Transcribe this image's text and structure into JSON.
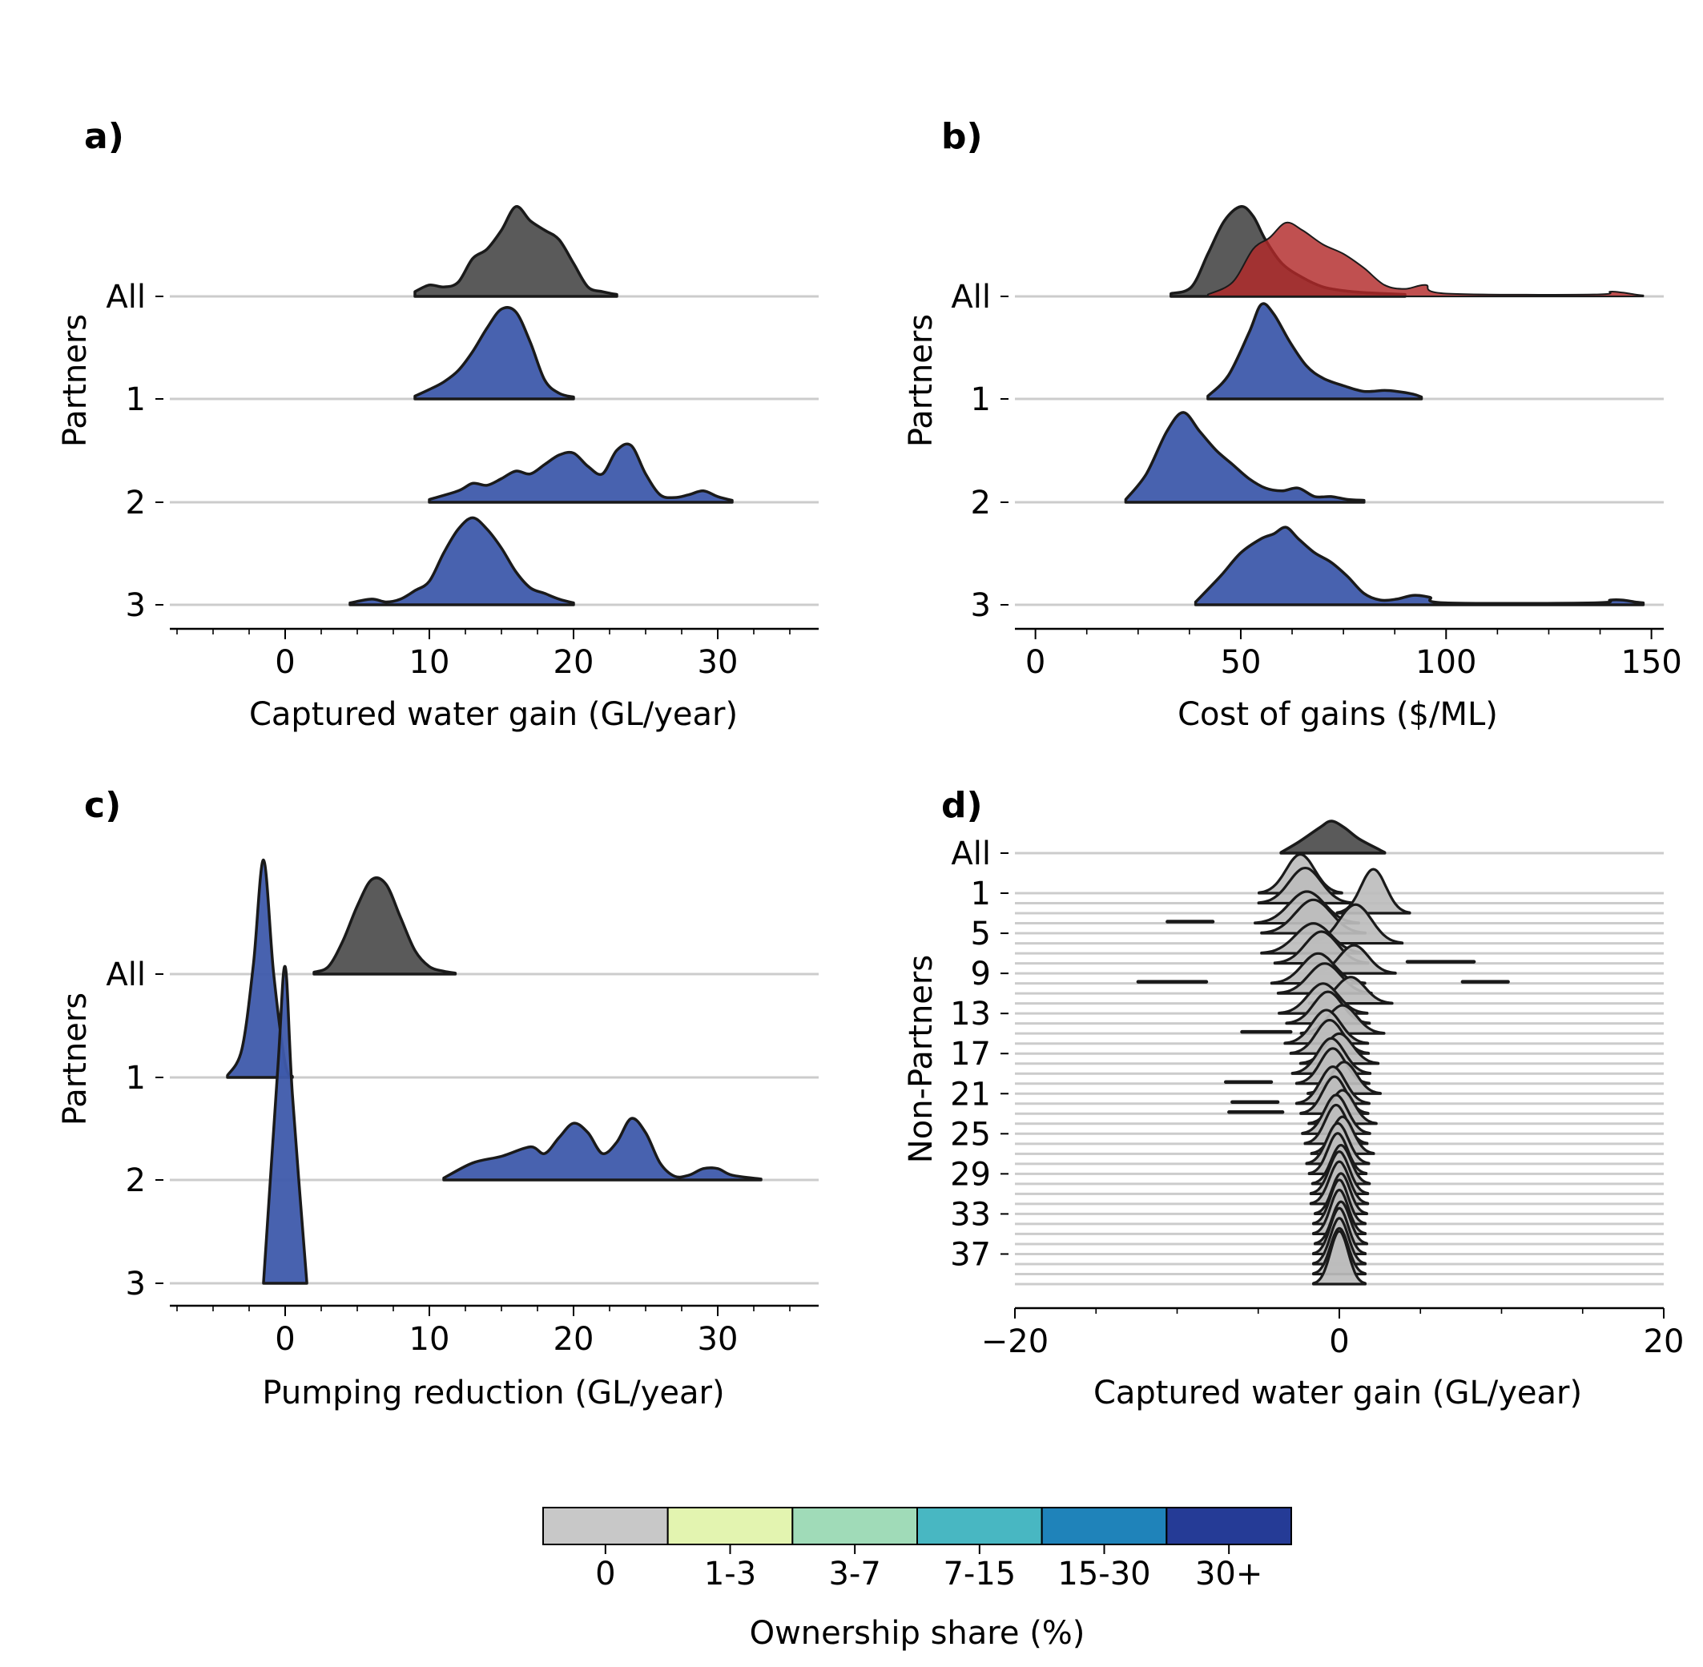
{
  "chart_data": [
    {
      "panel": "a)",
      "type": "area",
      "xlabel": "Captured water gain (GL/year)",
      "ylabel": "Partners",
      "xlim": [
        -8,
        37
      ],
      "xticks": [
        0,
        10,
        20,
        30
      ],
      "rows": [
        "All",
        "1",
        "2",
        "3"
      ],
      "series": [
        {
          "row": "All",
          "fill": "gray",
          "x": [
            9,
            10,
            11,
            12,
            13,
            14,
            15,
            16,
            17,
            18,
            19,
            20,
            21,
            22,
            23
          ],
          "y": [
            0.05,
            0.12,
            0.1,
            0.15,
            0.4,
            0.5,
            0.7,
            0.95,
            0.8,
            0.7,
            0.6,
            0.35,
            0.1,
            0.05,
            0.02
          ]
        },
        {
          "row": "1",
          "fill": "blue",
          "x": [
            9,
            10,
            11,
            12,
            13,
            14,
            15,
            16,
            17,
            18,
            19,
            20
          ],
          "y": [
            0.03,
            0.1,
            0.18,
            0.3,
            0.5,
            0.75,
            0.95,
            0.92,
            0.6,
            0.2,
            0.06,
            0.02
          ]
        },
        {
          "row": "2",
          "fill": "blue",
          "x": [
            10,
            12,
            13,
            14,
            15,
            16,
            17,
            18,
            19,
            20,
            21,
            22,
            23,
            24,
            25,
            26,
            27,
            28,
            29,
            30,
            31
          ],
          "y": [
            0.03,
            0.12,
            0.2,
            0.18,
            0.25,
            0.33,
            0.3,
            0.4,
            0.5,
            0.52,
            0.38,
            0.3,
            0.55,
            0.6,
            0.3,
            0.08,
            0.05,
            0.08,
            0.12,
            0.06,
            0.02
          ]
        },
        {
          "row": "3",
          "fill": "blue",
          "x": [
            4.5,
            6,
            7,
            8,
            9,
            10,
            11,
            12,
            13,
            14,
            15,
            16,
            17,
            18,
            19,
            20
          ],
          "y": [
            0.02,
            0.06,
            0.03,
            0.06,
            0.15,
            0.25,
            0.55,
            0.8,
            0.92,
            0.8,
            0.6,
            0.35,
            0.18,
            0.12,
            0.06,
            0.02
          ]
        }
      ]
    },
    {
      "panel": "b)",
      "type": "area",
      "xlabel": "Cost of gains ($/ML)",
      "ylabel": "Partners",
      "xlim": [
        -5,
        153
      ],
      "xticks": [
        0,
        50,
        100,
        150
      ],
      "rows": [
        "All",
        "1",
        "2",
        "3"
      ],
      "series": [
        {
          "row": "All",
          "fill": "gray",
          "x": [
            33,
            38,
            42,
            46,
            50,
            53,
            56,
            60,
            65,
            70,
            75,
            80,
            85,
            90
          ],
          "y": [
            0.03,
            0.1,
            0.45,
            0.8,
            0.95,
            0.85,
            0.6,
            0.35,
            0.2,
            0.1,
            0.06,
            0.04,
            0.03,
            0.02
          ]
        },
        {
          "row": "All",
          "fill": "red",
          "x": [
            42,
            48,
            53,
            57,
            61,
            65,
            70,
            75,
            80,
            85,
            90,
            95,
            100,
            136,
            140,
            143,
            146,
            148
          ],
          "y": [
            0.02,
            0.15,
            0.5,
            0.62,
            0.78,
            0.7,
            0.55,
            0.45,
            0.3,
            0.12,
            0.08,
            0.12,
            0.03,
            0.02,
            0.05,
            0.04,
            0.02,
            0.01
          ]
        },
        {
          "row": "1",
          "fill": "blue",
          "x": [
            42,
            47,
            52,
            55,
            58,
            62,
            66,
            70,
            75,
            80,
            85,
            88,
            92,
            94
          ],
          "y": [
            0.03,
            0.25,
            0.7,
            1.0,
            0.9,
            0.6,
            0.35,
            0.22,
            0.14,
            0.08,
            0.09,
            0.08,
            0.05,
            0.02
          ]
        },
        {
          "row": "2",
          "fill": "blue",
          "x": [
            22,
            27,
            32,
            36,
            40,
            44,
            48,
            52,
            56,
            60,
            64,
            68,
            72,
            76,
            80
          ],
          "y": [
            0.03,
            0.3,
            0.75,
            0.95,
            0.75,
            0.55,
            0.4,
            0.25,
            0.15,
            0.12,
            0.15,
            0.06,
            0.06,
            0.03,
            0.02
          ]
        },
        {
          "row": "3",
          "fill": "blue",
          "x": [
            39,
            45,
            50,
            55,
            58,
            61,
            64,
            68,
            72,
            76,
            80,
            84,
            88,
            92,
            96,
            100,
            136,
            140,
            143,
            146,
            148
          ],
          "y": [
            0.03,
            0.3,
            0.55,
            0.7,
            0.75,
            0.82,
            0.7,
            0.55,
            0.45,
            0.3,
            0.12,
            0.05,
            0.06,
            0.1,
            0.08,
            0.02,
            0.02,
            0.05,
            0.05,
            0.03,
            0.02
          ]
        }
      ]
    },
    {
      "panel": "c)",
      "type": "area",
      "xlabel": "Pumping reduction (GL/year)",
      "ylabel": "Partners",
      "xlim": [
        -8,
        37
      ],
      "xticks": [
        0,
        10,
        20,
        30
      ],
      "rows": [
        "All",
        "1",
        "2",
        "3"
      ],
      "series": [
        {
          "row": "All",
          "fill": "gray",
          "x": [
            2,
            3,
            4,
            5,
            6,
            7,
            8,
            9,
            10,
            11,
            11.8
          ],
          "y": [
            0.02,
            0.08,
            0.35,
            0.72,
            1.0,
            0.95,
            0.6,
            0.25,
            0.08,
            0.03,
            0.01
          ]
        },
        {
          "row": "1",
          "fill": "blue",
          "x": [
            -4,
            -3,
            -2.2,
            -1.5,
            -0.8,
            0,
            0.5
          ],
          "y": [
            0.02,
            0.3,
            1.2,
            2.3,
            1.1,
            0.15,
            0.01
          ]
        },
        {
          "row": "2",
          "fill": "blue",
          "x": [
            11,
            13,
            15,
            17,
            18,
            19,
            20,
            21,
            22,
            23,
            24,
            25,
            26,
            27,
            28,
            29,
            30,
            31,
            33
          ],
          "y": [
            0.02,
            0.18,
            0.25,
            0.35,
            0.28,
            0.45,
            0.6,
            0.5,
            0.28,
            0.4,
            0.65,
            0.5,
            0.18,
            0.04,
            0.05,
            0.12,
            0.12,
            0.05,
            0.01
          ]
        },
        {
          "row": "3",
          "fill": "blue",
          "x": [
            -1.5,
            -0.5,
            0,
            0.5,
            1.5
          ],
          "y": [
            0.01,
            2.3,
            3.35,
            2.0,
            0.01
          ]
        }
      ]
    },
    {
      "panel": "d)",
      "type": "area",
      "xlabel": "Captured water gain (GL/year)",
      "ylabel": "Non-Partners",
      "xlim": [
        -20,
        20
      ],
      "xticks": [
        -20,
        0,
        20
      ],
      "xtick_labels": [
        "−20",
        "0",
        "20"
      ],
      "ytick_labels": [
        "All",
        "1",
        "5",
        "9",
        "13",
        "17",
        "21",
        "25",
        "29",
        "33",
        "37"
      ],
      "rows_count": 40,
      "all_row": {
        "x": [
          -3.6,
          -2.5,
          -1.2,
          -0.5,
          0.3,
          1.2,
          2.5,
          2.8
        ],
        "y": [
          0.02,
          0.35,
          0.8,
          1.0,
          0.8,
          0.45,
          0.1,
          0.02
        ]
      },
      "fill": "lightgray",
      "peak_centers": [
        -2.4,
        -2.1,
        2.1,
        -2.0,
        -1.6,
        1.0,
        -1.6,
        -1.1,
        0.9,
        -1.3,
        -0.9,
        0.7,
        -1.0,
        -0.7,
        0.2,
        -0.8,
        -0.6,
        0.0,
        -0.5,
        -0.4,
        0.3,
        -0.4,
        -0.3,
        0.2,
        -0.2,
        -0.2,
        0.2,
        -0.1,
        -0.1,
        0.1,
        0.0,
        0.0,
        0.1,
        0.0,
        0.0,
        0.1,
        0.0,
        0.0,
        0.0,
        0.0
      ],
      "peak_widths": [
        1.6,
        1.8,
        1.4,
        2.0,
        2.0,
        1.8,
        2.0,
        1.8,
        1.6,
        1.8,
        1.8,
        1.6,
        1.7,
        1.6,
        1.6,
        1.6,
        1.5,
        1.5,
        1.5,
        1.4,
        1.4,
        1.4,
        1.3,
        1.3,
        1.3,
        1.2,
        1.2,
        1.2,
        1.1,
        1.1,
        1.1,
        1.1,
        1.0,
        1.0,
        1.0,
        1.0,
        1.0,
        1.0,
        1.0,
        1.0
      ],
      "peak_heights": [
        2.2,
        2.0,
        2.5,
        1.8,
        1.9,
        2.2,
        1.7,
        1.8,
        1.6,
        1.7,
        1.7,
        1.5,
        1.7,
        1.8,
        1.6,
        1.9,
        1.9,
        1.7,
        2.0,
        2.0,
        1.8,
        2.1,
        2.1,
        1.9,
        2.2,
        2.2,
        2.1,
        2.3,
        2.3,
        2.2,
        2.4,
        2.4,
        2.3,
        2.5,
        2.5,
        2.4,
        2.6,
        2.6,
        2.6,
        3.0
      ],
      "tails": [
        {
          "row": 3,
          "x": [
            -10.6,
            -7.8
          ]
        },
        {
          "row": 9,
          "x": [
            -12.4,
            -8.2
          ]
        },
        {
          "row": 9,
          "x": [
            7.6,
            10.4
          ]
        },
        {
          "row": 7,
          "x": [
            4.2,
            8.3
          ]
        },
        {
          "row": 19,
          "x": [
            -7.0,
            -4.2
          ]
        },
        {
          "row": 21,
          "x": [
            -6.6,
            -3.8
          ]
        },
        {
          "row": 22,
          "x": [
            -6.8,
            -3.5
          ]
        },
        {
          "row": 14,
          "x": [
            -6.0,
            -3.0
          ]
        }
      ]
    }
  ],
  "panels": {
    "a": {
      "label": "a)",
      "xlabel": "Captured water gain (GL/year)",
      "ylabel": "Partners"
    },
    "b": {
      "label": "b)",
      "xlabel": "Cost of gains ($/ML)",
      "ylabel": "Partners"
    },
    "c": {
      "label": "c)",
      "xlabel": "Pumping reduction (GL/year)",
      "ylabel": "Partners"
    },
    "d": {
      "label": "d)",
      "xlabel": "Captured water gain (GL/year)",
      "ylabel": "Non-Partners"
    }
  },
  "colorbar": {
    "title": "Ownership share (%)",
    "categories": [
      "0",
      "1-3",
      "3-7",
      "7-15",
      "15-30",
      "30+"
    ],
    "colors": [
      "#c8c8c8",
      "#e3f4b0",
      "#a0dbb8",
      "#48b7c2",
      "#1f83ba",
      "#253b96"
    ]
  },
  "colors": {
    "gray_fill": "#555555",
    "blue_fill": "#3e5aab",
    "red_fill": "#b22a2a",
    "lightgray_fill": "#bdbdbd",
    "outline": "#1a1a1a",
    "gridline": "#cccccc"
  }
}
